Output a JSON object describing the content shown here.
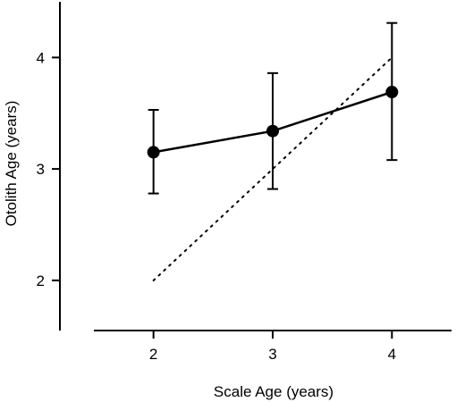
{
  "chart_data": {
    "type": "line",
    "title": "",
    "xlabel": "Scale Age (years)",
    "ylabel": "Otolith Age (years)",
    "x_ticks": [
      2,
      3,
      4
    ],
    "y_ticks": [
      2,
      3,
      4
    ],
    "xlim": [
      1.5,
      4.5
    ],
    "ylim": [
      1.55,
      4.5
    ],
    "grid": false,
    "legend": "none",
    "series": [
      {
        "x": [
          2,
          3,
          4
        ],
        "y": [
          3.15,
          3.34,
          3.69
        ],
        "y_err_low": [
          2.78,
          2.82,
          3.08
        ],
        "y_err_high": [
          3.53,
          3.86,
          4.31
        ],
        "style": "solid-line-with-markers"
      }
    ],
    "reference_line": {
      "x": [
        2,
        4
      ],
      "y": [
        2,
        4
      ],
      "style": "dotted"
    },
    "color": "#000000"
  }
}
